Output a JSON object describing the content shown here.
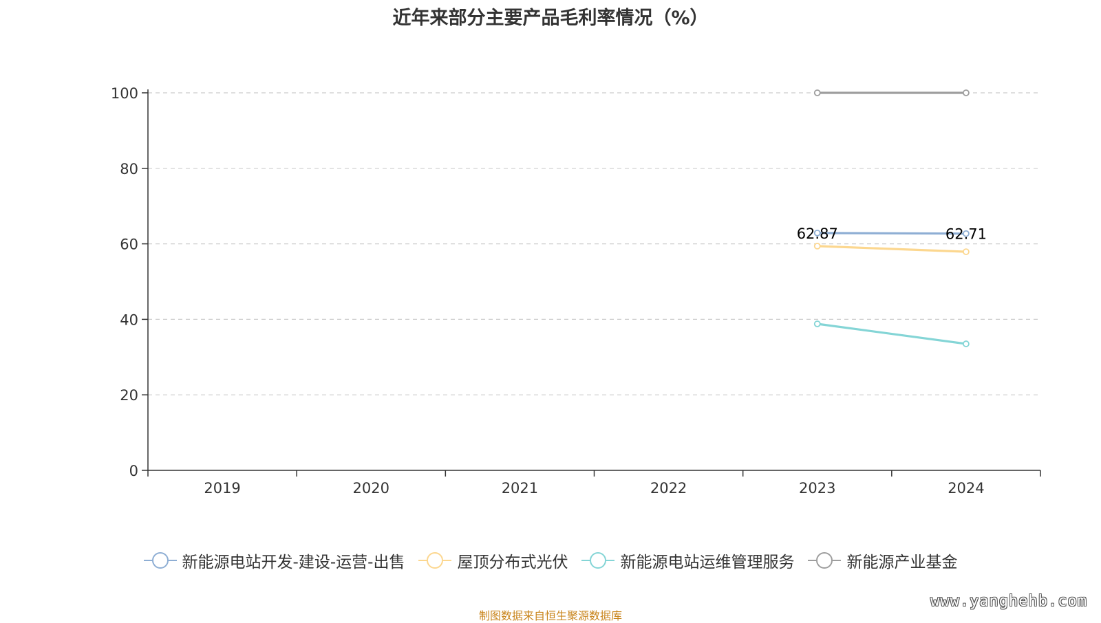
{
  "watermark": "www.yanghehb.com",
  "source_note": "制图数据来自恒生聚源数据库",
  "chart_data": {
    "type": "line",
    "title": "近年来部分主要产品毛利率情况（%）",
    "xlabel": "",
    "ylabel": "",
    "categories": [
      "2019",
      "2020",
      "2021",
      "2022",
      "2023",
      "2024"
    ],
    "ylim": [
      0,
      100
    ],
    "yticks": [
      0,
      20,
      40,
      60,
      80,
      100
    ],
    "grid": true,
    "legend_position": "bottom",
    "series": [
      {
        "name": "新能源电站开发-建设-运营-出售",
        "color": "#8eaed4",
        "values": [
          null,
          null,
          null,
          null,
          62.87,
          62.71
        ],
        "labels": [
          null,
          null,
          null,
          null,
          "62.87",
          "62.71"
        ]
      },
      {
        "name": "屋顶分布式光伏",
        "color": "#fcd78f",
        "values": [
          null,
          null,
          null,
          null,
          59.4,
          57.9
        ],
        "labels": [
          null,
          null,
          null,
          null,
          null,
          null
        ]
      },
      {
        "name": "新能源电站运维管理服务",
        "color": "#84d5d6",
        "values": [
          null,
          null,
          null,
          null,
          38.8,
          33.5
        ],
        "labels": [
          null,
          null,
          null,
          null,
          null,
          null
        ]
      },
      {
        "name": "新能源产业基金",
        "color": "#9e9e9e",
        "values": [
          null,
          null,
          null,
          null,
          100,
          100
        ],
        "labels": [
          null,
          null,
          null,
          null,
          null,
          null
        ]
      }
    ]
  }
}
